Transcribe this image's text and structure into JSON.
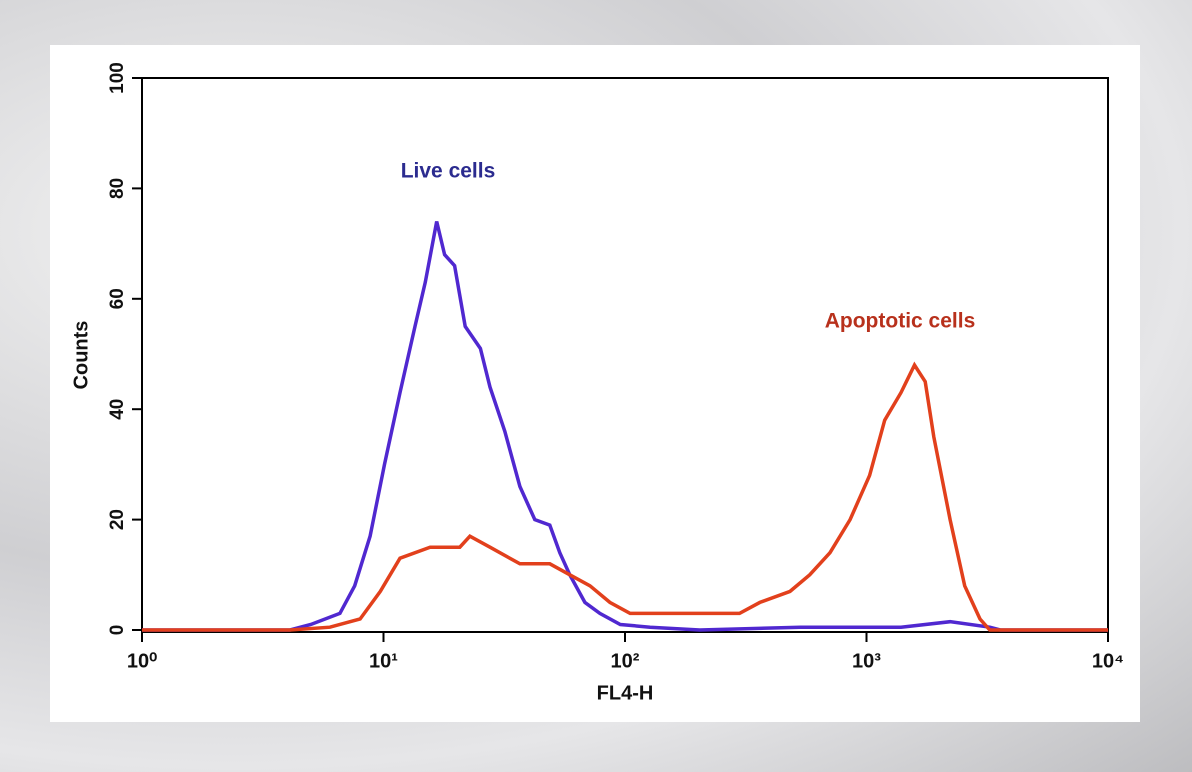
{
  "chart_data": {
    "type": "line",
    "x_label": "FL4-H",
    "y_label": "Counts",
    "xscale": "log",
    "xlim": [
      1,
      10000
    ],
    "ylim": [
      0,
      100
    ],
    "xticks": [
      {
        "value": 1,
        "label": "10⁰"
      },
      {
        "value": 10,
        "label": "10¹"
      },
      {
        "value": 100,
        "label": "10²"
      },
      {
        "value": 1000,
        "label": "10³"
      },
      {
        "value": 10000,
        "label": "10⁴"
      }
    ],
    "yticks": [
      0,
      20,
      40,
      60,
      80,
      100
    ],
    "annotations": [
      {
        "text": "Live cells",
        "color": "#2b2b8f"
      },
      {
        "text": "Apoptotic cells",
        "color": "#b8311c"
      }
    ],
    "series": [
      {
        "color": "#5028d0",
        "x": [
          1,
          4.1,
          5,
          6.6,
          7.6,
          8.8,
          10.1,
          11.7,
          13.5,
          14.9,
          16.6,
          17.9,
          19.7,
          21.8,
          25.2,
          27.6,
          31.8,
          36.7,
          42.3,
          48.8,
          53.7,
          59.1,
          68.2,
          78.7,
          95.6,
          127,
          204,
          533,
          1390,
          2220,
          3240,
          3580,
          10000
        ],
        "values": [
          0,
          0,
          1,
          3,
          8,
          17,
          30,
          43,
          55,
          63,
          74,
          68,
          66,
          55,
          51,
          44,
          36,
          26,
          20,
          19,
          14,
          10,
          5,
          3,
          1,
          0.5,
          0,
          0.5,
          0.5,
          1.5,
          0.5,
          0,
          0
        ]
      },
      {
        "color": "#e2401c",
        "x": [
          1,
          4.1,
          6,
          8,
          9.7,
          11.7,
          15.6,
          20.7,
          22.8,
          27.6,
          36.7,
          48.8,
          59.1,
          71.6,
          86.6,
          105,
          140,
          204,
          298,
          362,
          482,
          582,
          706,
          855,
          1030,
          1190,
          1390,
          1580,
          1750,
          1900,
          2220,
          2550,
          2950,
          3240,
          10000
        ],
        "values": [
          0,
          0,
          0.5,
          2,
          7,
          13,
          15,
          15,
          17,
          15,
          12,
          12,
          10,
          8,
          5,
          3,
          3,
          3,
          3,
          5,
          7,
          10,
          14,
          20,
          28,
          38,
          43,
          48,
          45,
          35,
          20,
          8,
          2,
          0,
          0
        ]
      }
    ]
  }
}
